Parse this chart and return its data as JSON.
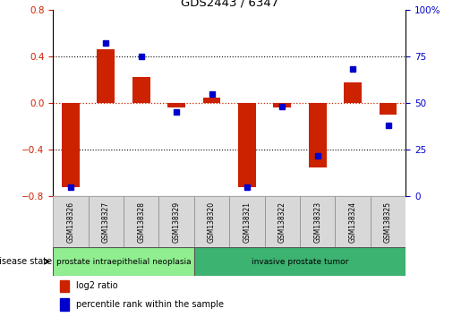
{
  "title": "GDS2443 / 6347",
  "samples": [
    "GSM138326",
    "GSM138327",
    "GSM138328",
    "GSM138329",
    "GSM138320",
    "GSM138321",
    "GSM138322",
    "GSM138323",
    "GSM138324",
    "GSM138325"
  ],
  "log2_ratio": [
    -0.72,
    0.46,
    0.22,
    -0.04,
    0.05,
    -0.72,
    -0.04,
    -0.55,
    0.18,
    -0.1
  ],
  "percentile_rank": [
    5,
    82,
    75,
    45,
    55,
    5,
    48,
    22,
    68,
    38
  ],
  "groups": [
    {
      "label": "prostate intraepithelial neoplasia",
      "start": 0,
      "end": 4,
      "color": "#90ee90"
    },
    {
      "label": "invasive prostate tumor",
      "start": 4,
      "end": 10,
      "color": "#3cb371"
    }
  ],
  "disease_state_label": "disease state",
  "ylim_left": [
    -0.8,
    0.8
  ],
  "ylim_right": [
    0,
    100
  ],
  "yticks_left": [
    -0.8,
    -0.4,
    0.0,
    0.4,
    0.8
  ],
  "yticks_right": [
    0,
    25,
    50,
    75,
    100
  ],
  "bar_color": "#cc2200",
  "dot_color": "#0000cc",
  "zero_line_color": "#cc2200",
  "legend_items": [
    "log2 ratio",
    "percentile rank within the sample"
  ],
  "bar_width": 0.5,
  "fig_width": 5.15,
  "fig_height": 3.54,
  "dpi": 100
}
